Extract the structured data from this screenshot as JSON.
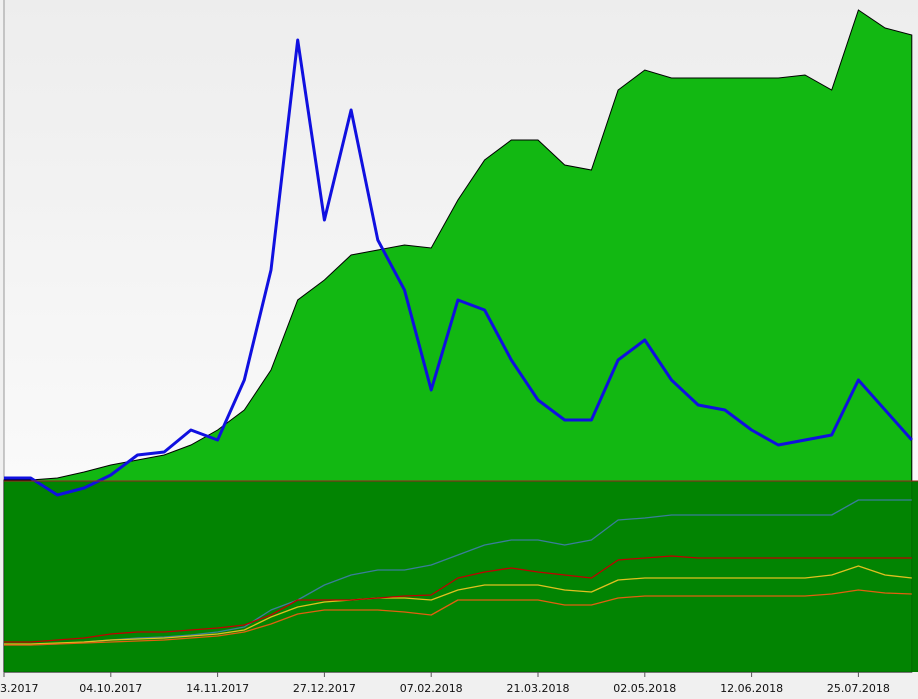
{
  "chart_data": {
    "type": "line",
    "categories": [
      "3.2017",
      null,
      null,
      null,
      "04.10.2017",
      null,
      null,
      null,
      "14.11.2017",
      null,
      null,
      null,
      "27.12.2017",
      null,
      null,
      null,
      "07.02.2018",
      null,
      null,
      null,
      "21.03.2018",
      null,
      null,
      null,
      "02.05.2018",
      null,
      null,
      null,
      "12.06.2018",
      null,
      null,
      null,
      "25.07.2018",
      null,
      null
    ],
    "ylim": [
      0,
      672
    ],
    "series": [
      {
        "color": "#12b812",
        "fill": true,
        "values": [
          192,
          192,
          194,
          200,
          207,
          212,
          217,
          227,
          242,
          262,
          302,
          372,
          392,
          417,
          422,
          427,
          424,
          472,
          512,
          532,
          532,
          507,
          502,
          582,
          602,
          594,
          594,
          594,
          594,
          594,
          597,
          582,
          662,
          644,
          637
        ]
      },
      {
        "color": "#3a7e9a",
        "values": [
          27,
          27,
          28,
          30,
          32,
          34,
          35,
          37,
          40,
          45,
          62,
          72,
          87,
          97,
          102,
          102,
          107,
          117,
          127,
          132,
          132,
          127,
          132,
          152,
          154,
          157,
          157,
          157,
          157,
          157,
          157,
          157,
          172,
          172,
          172
        ]
      },
      {
        "color": "#e0c020",
        "values": [
          28,
          28,
          29,
          30,
          32,
          33,
          34,
          36,
          38,
          42,
          55,
          65,
          70,
          72,
          74,
          74,
          72,
          82,
          87,
          87,
          87,
          82,
          80,
          92,
          94,
          94,
          94,
          94,
          94,
          94,
          94,
          97,
          106,
          97,
          94
        ]
      },
      {
        "color": "#e06010",
        "values": [
          27,
          27,
          28,
          29,
          30,
          31,
          32,
          34,
          36,
          40,
          48,
          58,
          62,
          62,
          62,
          60,
          57,
          72,
          72,
          72,
          72,
          67,
          67,
          74,
          76,
          76,
          76,
          76,
          76,
          76,
          76,
          78,
          82,
          79,
          78
        ]
      },
      {
        "color": "#c00000",
        "values": [
          30,
          30,
          32,
          34,
          38,
          40,
          40,
          42,
          44,
          47,
          57,
          72,
          72,
          72,
          74,
          76,
          77,
          94,
          100,
          104,
          100,
          97,
          94,
          112,
          114,
          116,
          114,
          114,
          114,
          114,
          114,
          114,
          114,
          114,
          114
        ]
      },
      {
        "color": "#1010e0",
        "width": 3,
        "values": [
          194,
          194,
          177,
          184,
          197,
          217,
          220,
          242,
          232,
          292,
          402,
          632,
          452,
          562,
          432,
          382,
          282,
          372,
          362,
          312,
          272,
          252,
          252,
          312,
          332,
          292,
          267,
          262,
          242,
          227,
          232,
          237,
          292,
          262,
          232
        ]
      }
    ]
  }
}
